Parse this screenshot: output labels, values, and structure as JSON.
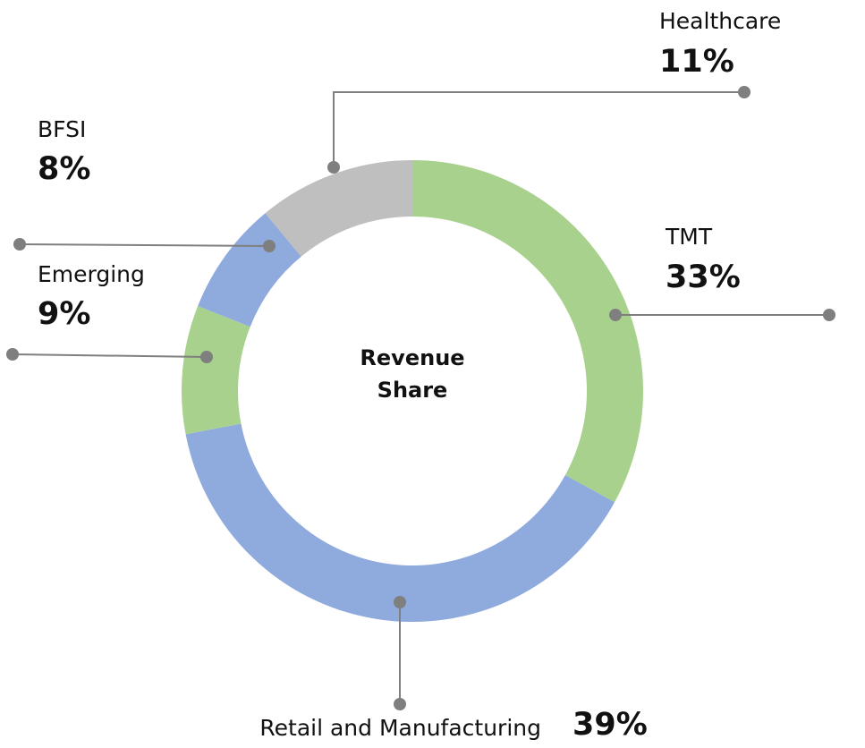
{
  "chart_data": {
    "type": "pie",
    "donut": true,
    "center_text": "Revenue Share",
    "categories": [
      "TMT",
      "Retail and Manufacturing",
      "Emerging",
      "BFSI",
      "Healthcare"
    ],
    "values": [
      33,
      39,
      9,
      8,
      11
    ],
    "value_labels": [
      "33%",
      "39%",
      "9%",
      "8%",
      "11%"
    ],
    "colors": [
      "#a9d18e",
      "#8faadc",
      "#a9d18e",
      "#8faadc",
      "#bfbfbf"
    ]
  }
}
